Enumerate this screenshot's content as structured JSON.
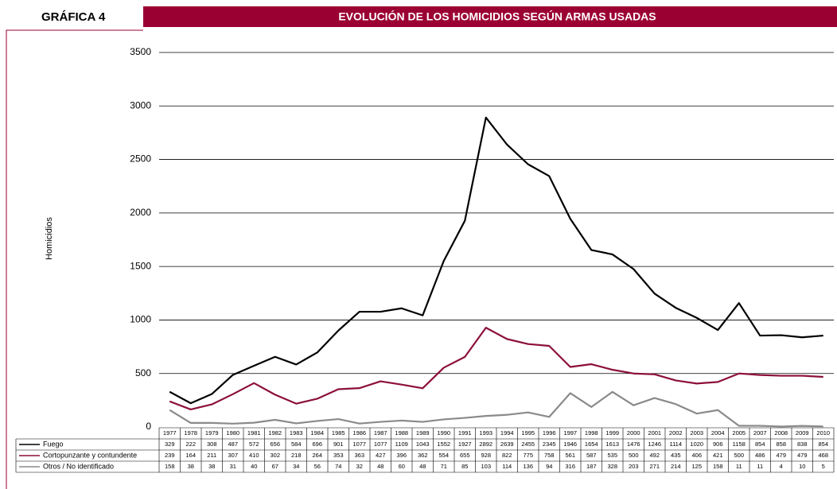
{
  "chart_data": {
    "type": "line",
    "label": "GRÁFICA 4",
    "title": "EVOLUCIÓN DE LOS HOMICIDIOS SEGÚN ARMAS USADAS",
    "ylabel": "Homicidios",
    "categories": [
      "1977",
      "1978",
      "1979",
      "1980",
      "1981",
      "1982",
      "1983",
      "1984",
      "1985",
      "1986",
      "1987",
      "1988",
      "1989",
      "1990",
      "1991",
      "1993",
      "1994",
      "1995",
      "1996",
      "1997",
      "1998",
      "1999",
      "2000",
      "2001",
      "2002",
      "2003",
      "2004",
      "2005",
      "2007",
      "2008",
      "2009",
      "2010"
    ],
    "series": [
      {
        "name": "Fuego",
        "color": "#000000",
        "values": [
          329,
          222,
          308,
          487,
          572,
          656,
          584,
          696,
          901,
          1077,
          1077,
          1109,
          1043,
          1552,
          1927,
          2892,
          2639,
          2455,
          2345,
          1946,
          1654,
          1613,
          1476,
          1246,
          1114,
          1020,
          906,
          1158,
          854,
          858,
          838,
          854
        ]
      },
      {
        "name": "Cortopunzante y contundente",
        "color": "#8c0f3c",
        "values": [
          239,
          164,
          211,
          307,
          410,
          302,
          218,
          264,
          353,
          363,
          427,
          396,
          362,
          554,
          655,
          928,
          822,
          775,
          758,
          561,
          587,
          535,
          500,
          492,
          435,
          406,
          421,
          500,
          486,
          479,
          479,
          468
        ]
      },
      {
        "name": "Otros / No identificado",
        "color": "#8a8a8a",
        "values": [
          158,
          38,
          38,
          31,
          40,
          67,
          34,
          56,
          74,
          32,
          48,
          60,
          48,
          71,
          85,
          103,
          114,
          136,
          94,
          316,
          187,
          328,
          203,
          271,
          214,
          125,
          158,
          11,
          11,
          4,
          10,
          5
        ]
      }
    ],
    "ylim": [
      0,
      3500
    ],
    "yticks": [
      0,
      500,
      1000,
      1500,
      2000,
      2500,
      3000,
      3500
    ],
    "grid": true
  }
}
